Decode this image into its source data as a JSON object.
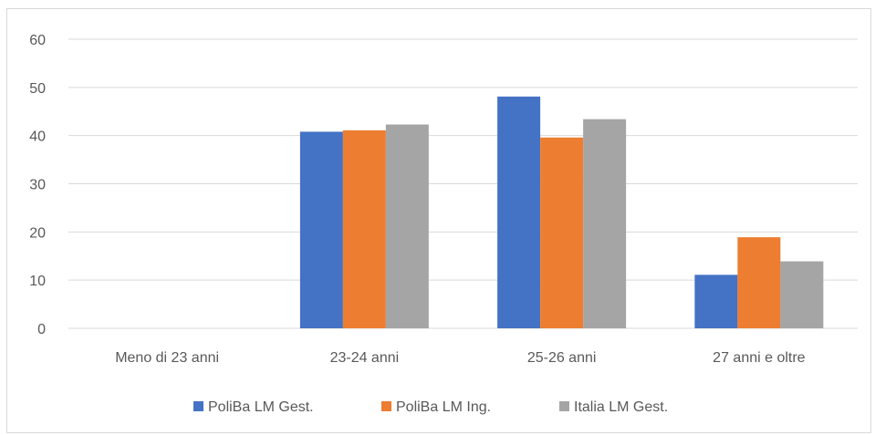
{
  "chart_data": {
    "type": "bar",
    "title": "",
    "xlabel": "",
    "ylabel": "",
    "categories": [
      "Meno di 23 anni",
      "23-24 anni",
      "25-26 anni",
      "27 anni e oltre"
    ],
    "series": [
      {
        "name": "PoliBa LM Gest.",
        "color": "#4472c4",
        "values": [
          0,
          40.8,
          48.1,
          11.1
        ]
      },
      {
        "name": "PoliBa LM Ing.",
        "color": "#ed7d31",
        "values": [
          0,
          41.1,
          39.6,
          18.9
        ]
      },
      {
        "name": "Italia LM Gest.",
        "color": "#a5a5a5",
        "values": [
          0,
          42.3,
          43.4,
          13.9
        ]
      }
    ],
    "ylim": [
      0,
      60
    ],
    "yticks": [
      0,
      10,
      20,
      30,
      40,
      50,
      60
    ],
    "grid": true,
    "legend_position": "bottom"
  }
}
